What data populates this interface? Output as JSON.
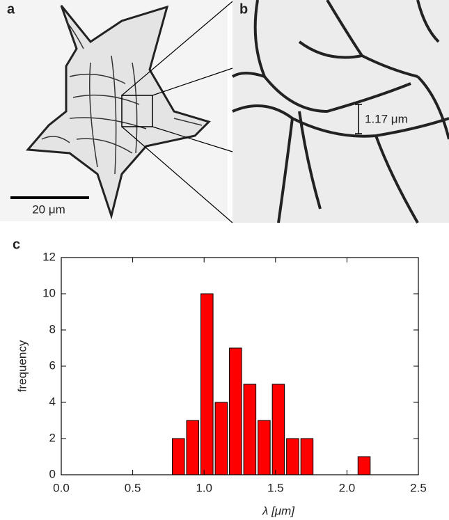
{
  "chart_data": {
    "type": "histogram",
    "panel_label": "c",
    "xlabel": "λ [μm]",
    "ylabel": "frequency",
    "bins": [
      0.77,
      0.87,
      0.97,
      1.07,
      1.17,
      1.27,
      1.37,
      1.47,
      1.57,
      1.67,
      1.77,
      1.87,
      1.97,
      2.07,
      2.17
    ],
    "values": [
      2,
      3,
      10,
      4,
      7,
      5,
      3,
      5,
      2,
      2,
      0,
      0,
      0,
      1
    ],
    "color": "#ff0000",
    "xlim": [
      0,
      2.5
    ],
    "xticks": [
      {
        "value": 0,
        "label": "0.0"
      },
      0.5,
      {
        "value": 1,
        "label": "1.0"
      },
      1.5,
      {
        "value": 2,
        "label": "2.0"
      },
      2.5
    ],
    "ylim": [
      0,
      12
    ],
    "yticks": [
      0,
      2,
      4,
      6,
      8,
      10,
      12
    ],
    "grid": false
  },
  "image_panels": [
    {
      "label": "a",
      "scale_bar": "20 μm"
    },
    {
      "label": "b",
      "scale_bar": "1.17 μm"
    }
  ]
}
